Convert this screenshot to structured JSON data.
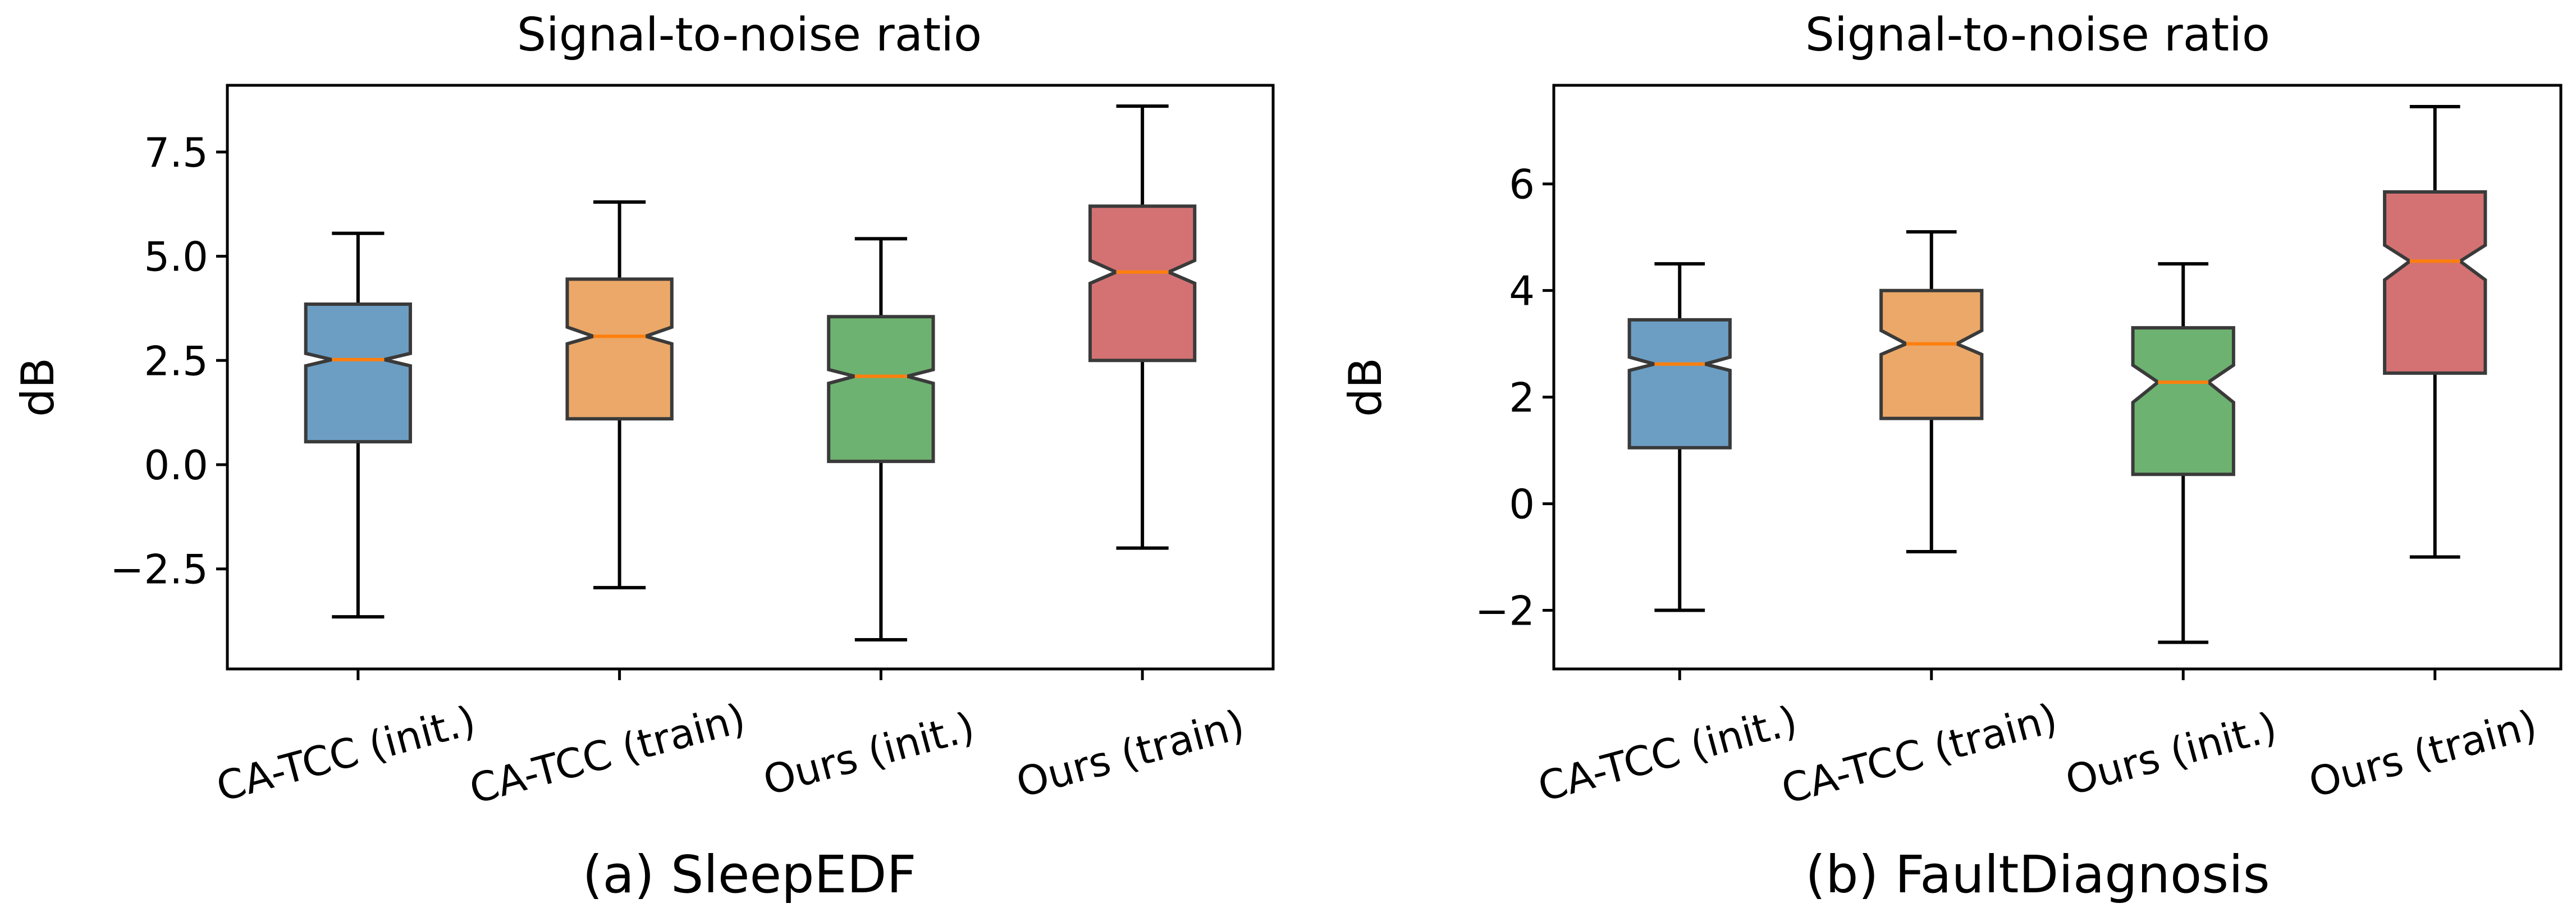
{
  "chart_data": [
    {
      "type": "box",
      "title": "Signal-to-noise ratio",
      "caption": "(a) SleepEDF",
      "ylabel": "dB",
      "ylim": [
        -4.9,
        9.1
      ],
      "yticks": [
        -2.5,
        0.0,
        2.5,
        5.0,
        7.5
      ],
      "ytick_labels": [
        "−2.5",
        "0.0",
        "2.5",
        "5.0",
        "7.5"
      ],
      "categories": [
        "CA-TCC (init.)",
        "CA-TCC (train)",
        "Ours (init.)",
        "Ours (train)"
      ],
      "colors": [
        "#6c9ec4",
        "#eba868",
        "#6db270",
        "#d47273"
      ],
      "median_color": "#ff7f0e",
      "boxes": [
        {
          "whislo": -3.65,
          "q1": 0.55,
          "notch_lo": 2.37,
          "med": 2.52,
          "notch_hi": 2.67,
          "q3": 3.85,
          "whishi": 5.55
        },
        {
          "whislo": -2.95,
          "q1": 1.1,
          "notch_lo": 2.9,
          "med": 3.08,
          "notch_hi": 3.3,
          "q3": 4.45,
          "whishi": 6.3
        },
        {
          "whislo": -4.2,
          "q1": 0.08,
          "notch_lo": 1.95,
          "med": 2.12,
          "notch_hi": 2.28,
          "q3": 3.55,
          "whishi": 5.42
        },
        {
          "whislo": -2.0,
          "q1": 2.5,
          "notch_lo": 4.35,
          "med": 4.62,
          "notch_hi": 4.9,
          "q3": 6.2,
          "whishi": 8.6
        }
      ]
    },
    {
      "type": "box",
      "title": "Signal-to-noise ratio",
      "caption": "(b) FaultDiagnosis",
      "ylabel": "dB",
      "ylim": [
        -3.1,
        7.85
      ],
      "yticks": [
        -2,
        0,
        2,
        4,
        6
      ],
      "ytick_labels": [
        "−2",
        "0",
        "2",
        "4",
        "6"
      ],
      "categories": [
        "CA-TCC (init.)",
        "CA-TCC (train)",
        "Ours (init.)",
        "Ours (train)"
      ],
      "colors": [
        "#6c9ec4",
        "#eba868",
        "#6db270",
        "#d47273"
      ],
      "median_color": "#ff7f0e",
      "boxes": [
        {
          "whislo": -2.0,
          "q1": 1.05,
          "notch_lo": 2.5,
          "med": 2.62,
          "notch_hi": 2.75,
          "q3": 3.45,
          "whishi": 4.5
        },
        {
          "whislo": -0.9,
          "q1": 1.6,
          "notch_lo": 2.8,
          "med": 3.0,
          "notch_hi": 3.25,
          "q3": 4.0,
          "whishi": 5.1
        },
        {
          "whislo": -2.6,
          "q1": 0.55,
          "notch_lo": 1.9,
          "med": 2.28,
          "notch_hi": 2.6,
          "q3": 3.3,
          "whishi": 4.5
        },
        {
          "whislo": -1.0,
          "q1": 2.45,
          "notch_lo": 4.2,
          "med": 4.55,
          "notch_hi": 4.85,
          "q3": 5.85,
          "whishi": 7.45
        }
      ]
    }
  ]
}
